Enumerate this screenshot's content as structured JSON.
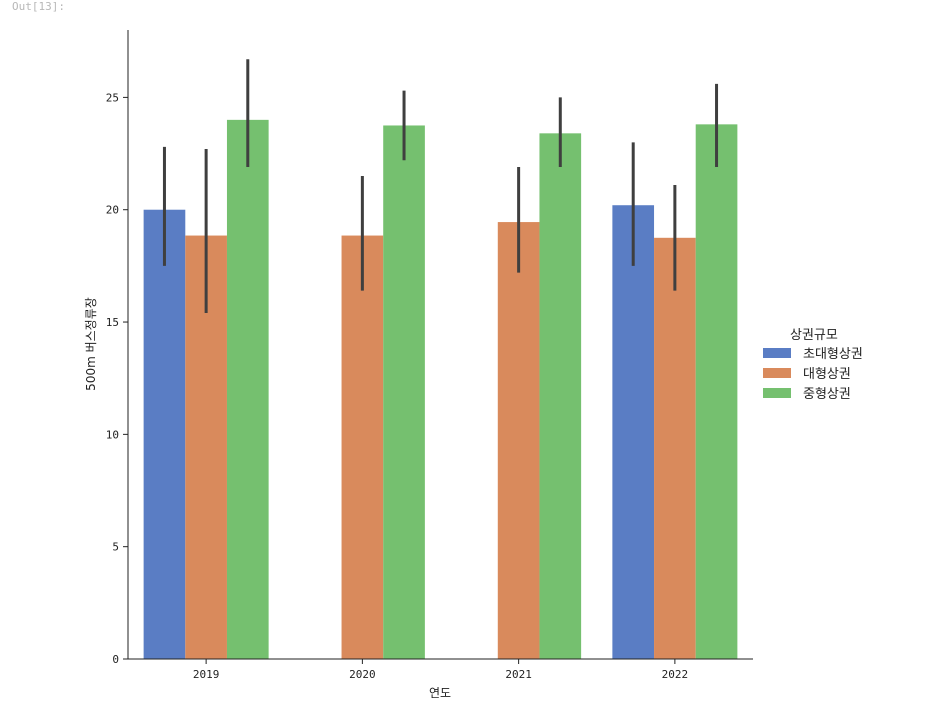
{
  "cell": {
    "prompt": "Out[13]:"
  },
  "chart_data": {
    "type": "bar",
    "categories": [
      "2019",
      "2020",
      "2021",
      "2022"
    ],
    "xlabel": "연도",
    "ylabel": "500m 버스정류장",
    "ylim": [
      0,
      28
    ],
    "yticks": [
      0,
      5,
      10,
      15,
      20,
      25
    ],
    "legend": {
      "title": "상권규모",
      "placement": "right"
    },
    "series": [
      {
        "name": "초대형상권",
        "color": "#5a7dc4",
        "values": [
          20.0,
          null,
          null,
          20.2
        ],
        "err_low": [
          17.5,
          null,
          null,
          17.5
        ],
        "err_high": [
          22.8,
          null,
          null,
          23.0
        ]
      },
      {
        "name": "대형상권",
        "color": "#d98a5c",
        "values": [
          18.85,
          18.85,
          19.45,
          18.75
        ],
        "err_low": [
          15.4,
          16.4,
          17.2,
          16.4
        ],
        "err_high": [
          22.7,
          21.5,
          21.9,
          21.1
        ]
      },
      {
        "name": "중형상권",
        "color": "#75c06f",
        "values": [
          24.0,
          23.75,
          23.4,
          23.8
        ],
        "err_low": [
          21.9,
          22.2,
          21.9,
          21.9
        ],
        "err_high": [
          26.7,
          25.3,
          25.0,
          25.6
        ]
      }
    ]
  }
}
